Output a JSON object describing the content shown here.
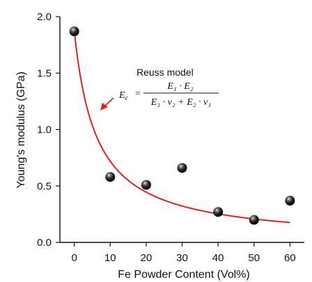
{
  "chart_data": {
    "type": "scatter",
    "xlabel": "Fe Powder Content (Vol%)",
    "ylabel": "Young's modulus (GPa)",
    "xlim": [
      -4,
      64
    ],
    "ylim": [
      0,
      2.0
    ],
    "x_ticks": [
      0,
      10,
      20,
      30,
      40,
      50,
      60
    ],
    "y_ticks": [
      0.0,
      0.5,
      1.0,
      1.5,
      2.0
    ],
    "x_tick_labels": [
      "0",
      "10",
      "20",
      "30",
      "40",
      "50",
      "60"
    ],
    "y_tick_labels": [
      "0.0",
      "0.5",
      "1.0",
      "1.5",
      "2.0"
    ],
    "grid": false,
    "series": [
      {
        "type": "scatter",
        "marker": "black sphere",
        "x": [
          0,
          10,
          20,
          30,
          40,
          50,
          60
        ],
        "y": [
          1.87,
          0.58,
          0.51,
          0.66,
          0.27,
          0.2,
          0.37
        ]
      },
      {
        "type": "line",
        "color": "#e02020",
        "model": "reuss",
        "E1": 1.87,
        "E2": 0.11
      }
    ],
    "annotation": {
      "title": "Reuss model",
      "formula_lhs": "E",
      "formula_lhs_sub": "c",
      "numerator": "E₁ · E₂",
      "denominator": "E₁ · v₂ + E₂ · v₁",
      "arrow_color": "#e02020"
    }
  }
}
